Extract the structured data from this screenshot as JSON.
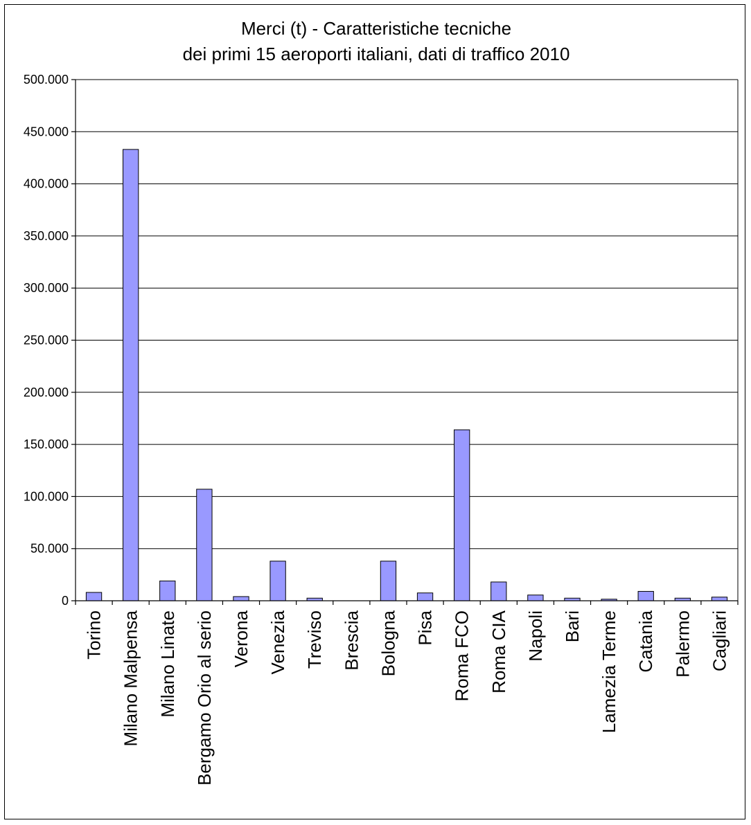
{
  "chart_data": {
    "type": "bar",
    "title": "Merci (t) - Caratteristiche tecniche",
    "subtitle": "dei primi 15 aeroporti italiani, dati di traffico 2010",
    "xlabel": "",
    "ylabel": "",
    "ylim": [
      0,
      500000
    ],
    "yticks": [
      0,
      50000,
      100000,
      150000,
      200000,
      250000,
      300000,
      350000,
      400000,
      450000,
      500000
    ],
    "ytick_labels": [
      "0",
      "50.000",
      "100.000",
      "150.000",
      "200.000",
      "250.000",
      "300.000",
      "350.000",
      "400.000",
      "450.000",
      "500.000"
    ],
    "grid": true,
    "legend": "none",
    "bar_color": "#9999ff",
    "categories": [
      "Torino",
      "Milano Malpensa",
      "Milano Linate",
      "Bergamo Orio al serio",
      "Verona",
      "Venezia",
      "Treviso",
      "Brescia",
      "Bologna",
      "Pisa",
      "Roma FCO",
      "Roma CIA",
      "Napoli",
      "Bari",
      "Lamezia Terme",
      "Catania",
      "Palermo",
      "Cagliari"
    ],
    "values": [
      8000,
      433000,
      19000,
      107000,
      4000,
      38000,
      2500,
      0,
      38000,
      7500,
      164000,
      18000,
      5500,
      2500,
      1500,
      9000,
      2500,
      3500
    ]
  }
}
